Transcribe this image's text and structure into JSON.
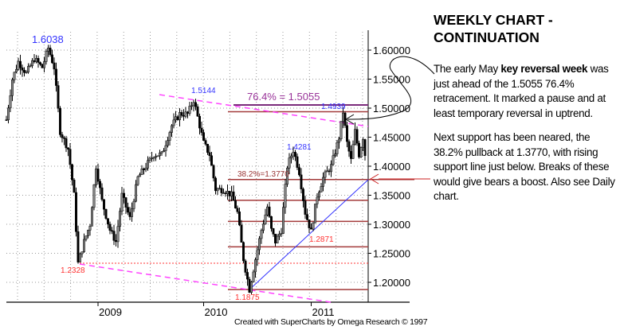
{
  "chart_data": {
    "type": "ohlc",
    "title": "WEEKLY CHART - CONTINUATION",
    "ylim": [
      1.16,
      1.64
    ],
    "y_ticks": [
      "1.60000",
      "1.55000",
      "1.50000",
      "1.45000",
      "1.40000",
      "1.35000",
      "1.30000",
      "1.25000",
      "1.20000"
    ],
    "y_tick_values": [
      1.6,
      1.55,
      1.5,
      1.45,
      1.4,
      1.35,
      1.3,
      1.25,
      1.2
    ],
    "x_ticks": [
      {
        "label": "2009",
        "week": 46
      },
      {
        "label": "2010",
        "week": 99
      },
      {
        "label": "2011",
        "week": 153
      }
    ],
    "weeks": 181,
    "approx_weekly_path": [
      [
        0,
        1.48
      ],
      [
        3,
        1.55
      ],
      [
        6,
        1.58
      ],
      [
        10,
        1.56
      ],
      [
        14,
        1.585
      ],
      [
        18,
        1.57
      ],
      [
        21,
        1.6038
      ],
      [
        24,
        1.57
      ],
      [
        27,
        1.46
      ],
      [
        31,
        1.43
      ],
      [
        34,
        1.35
      ],
      [
        36,
        1.2328
      ],
      [
        39,
        1.27
      ],
      [
        42,
        1.3
      ],
      [
        45,
        1.4
      ],
      [
        48,
        1.34
      ],
      [
        52,
        1.29
      ],
      [
        55,
        1.27
      ],
      [
        58,
        1.35
      ],
      [
        62,
        1.31
      ],
      [
        66,
        1.38
      ],
      [
        70,
        1.4
      ],
      [
        74,
        1.42
      ],
      [
        78,
        1.42
      ],
      [
        83,
        1.47
      ],
      [
        87,
        1.49
      ],
      [
        91,
        1.49
      ],
      [
        94,
        1.5144
      ],
      [
        97,
        1.47
      ],
      [
        99,
        1.44
      ],
      [
        102,
        1.42
      ],
      [
        105,
        1.36
      ],
      [
        109,
        1.36
      ],
      [
        113,
        1.35
      ],
      [
        116,
        1.32
      ],
      [
        119,
        1.24
      ],
      [
        122,
        1.1875
      ],
      [
        125,
        1.24
      ],
      [
        128,
        1.29
      ],
      [
        131,
        1.33
      ],
      [
        133,
        1.29
      ],
      [
        135,
        1.27
      ],
      [
        138,
        1.29
      ],
      [
        141,
        1.4
      ],
      [
        144,
        1.4281
      ],
      [
        147,
        1.39
      ],
      [
        150,
        1.32
      ],
      [
        153,
        1.2871
      ],
      [
        156,
        1.35
      ],
      [
        159,
        1.38
      ],
      [
        163,
        1.4
      ],
      [
        167,
        1.45
      ],
      [
        169,
        1.4939
      ],
      [
        171,
        1.44
      ],
      [
        173,
        1.41
      ],
      [
        175,
        1.46
      ],
      [
        177,
        1.42
      ],
      [
        179,
        1.45
      ],
      [
        180,
        1.42
      ]
    ],
    "annotations": [
      {
        "text": "1.6038",
        "value": 1.6038,
        "color": "#3333ff"
      },
      {
        "text": "1.5144",
        "value": 1.5144,
        "color": "#3333ff"
      },
      {
        "text": "1.4939",
        "value": 1.4939,
        "color": "#3333ff"
      },
      {
        "text": "1.4281",
        "value": 1.4281,
        "color": "#3333ff"
      },
      {
        "text": "1.2328",
        "value": 1.2328,
        "color": "#ff3333"
      },
      {
        "text": "1.2871",
        "value": 1.2871,
        "color": "#ff3333"
      },
      {
        "text": "1.1875",
        "value": 1.1875,
        "color": "#ff3333"
      },
      {
        "text": "76.4% = 1.5055",
        "value": 1.5055,
        "color": "#993399"
      },
      {
        "text": "38.2%=1.3770",
        "value": 1.377,
        "color": "#993333"
      }
    ],
    "horizontal_levels": [
      1.5055,
      1.4939,
      1.377,
      1.3413,
      1.3049,
      1.2611,
      1.1875
    ],
    "dotted_level": 1.2328,
    "colors": {
      "fib": "#a33a3a",
      "fib764": "#7a2a7a",
      "trend_dashed": "#ff44ff",
      "support": "#3333ff",
      "dotted": "#ff3333",
      "arrow_red": "#cc2222"
    }
  },
  "sidebar": {
    "title_line1": "WEEKLY CHART -",
    "title_line2": "CONTINUATION",
    "p1_a": "The early May ",
    "p1_bold": "key reversal week",
    "p1_b": " was just ahead of the 1.5055 76.4% retracement. It marked a pause and at least temporary reversal in uptrend.",
    "p2": "Next support has been neared, the 38.2% pullback at 1.3770, with rising support line just below. Breaks of these would give bears a boost. Also see Daily chart."
  },
  "footer": "Created with SuperCharts by Omega Research © 1997"
}
